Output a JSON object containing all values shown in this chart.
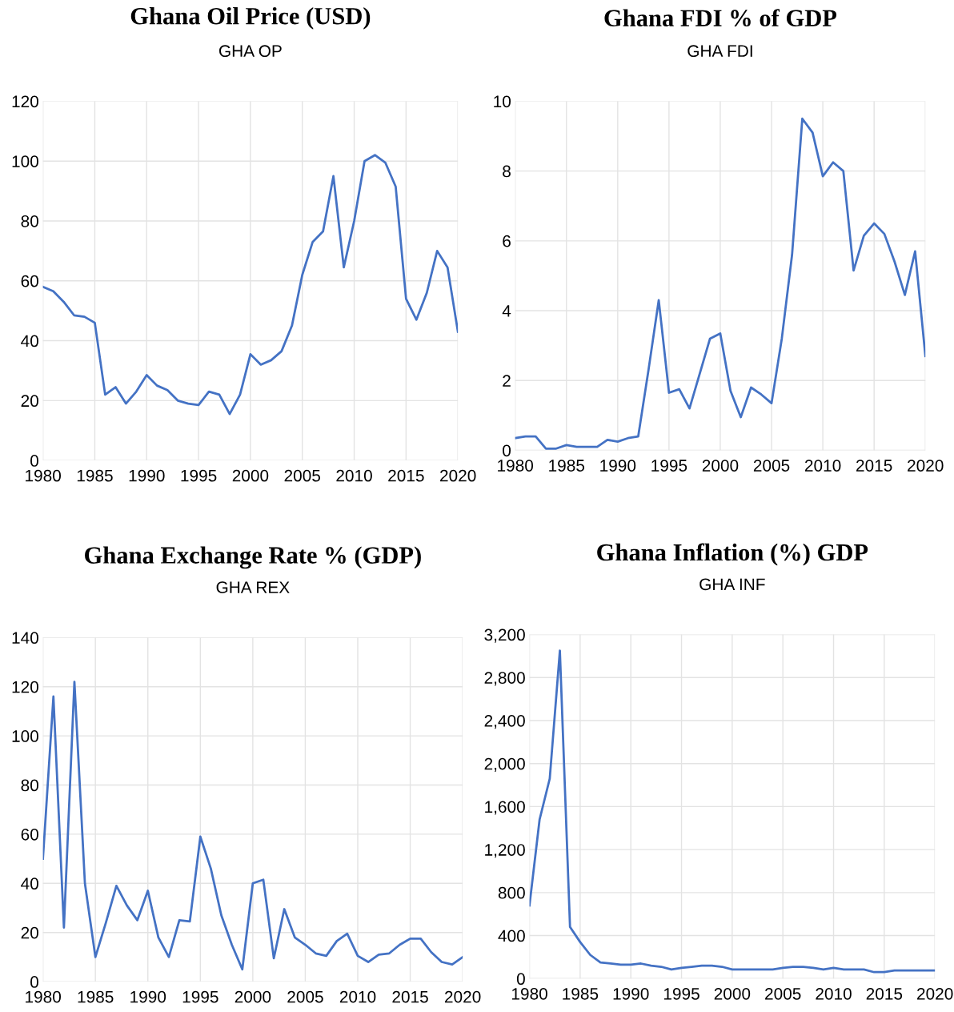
{
  "chart_data": [
    {
      "type": "line",
      "title": "Ghana Oil Price (USD)",
      "subtitle": "GHA OP",
      "x": [
        1980,
        1981,
        1982,
        1983,
        1984,
        1985,
        1986,
        1987,
        1988,
        1989,
        1990,
        1991,
        1992,
        1993,
        1994,
        1995,
        1996,
        1997,
        1998,
        1999,
        2000,
        2001,
        2002,
        2003,
        2004,
        2005,
        2006,
        2007,
        2008,
        2009,
        2010,
        2011,
        2012,
        2013,
        2014,
        2015,
        2016,
        2017,
        2018,
        2019,
        2020
      ],
      "series": [
        {
          "color": "#4472c4",
          "values": [
            58,
            56.5,
            53,
            48.5,
            48,
            46,
            22,
            24.5,
            19,
            23,
            28.5,
            25,
            23.5,
            20,
            19,
            18.5,
            23,
            22,
            15.5,
            22,
            35.5,
            32,
            33.5,
            36.5,
            45,
            62,
            73,
            76.5,
            95,
            64.5,
            80,
            100,
            102,
            99.5,
            91.5,
            54,
            47,
            56,
            70,
            64.5,
            43
          ]
        }
      ],
      "xlim": [
        1980,
        2020
      ],
      "xticks": [
        1980,
        1985,
        1990,
        1995,
        2000,
        2005,
        2010,
        2015,
        2020
      ],
      "ylim": [
        0,
        120
      ],
      "yticks": [
        0,
        20,
        40,
        60,
        80,
        100,
        120
      ],
      "grid": true,
      "marker": "none",
      "line_style": "solid"
    },
    {
      "type": "line",
      "title": "Ghana FDI % of GDP",
      "subtitle": "GHA FDI",
      "x": [
        1980,
        1981,
        1982,
        1983,
        1984,
        1985,
        1986,
        1987,
        1988,
        1989,
        1990,
        1991,
        1992,
        1993,
        1994,
        1995,
        1996,
        1997,
        1998,
        1999,
        2000,
        2001,
        2002,
        2003,
        2004,
        2005,
        2006,
        2007,
        2008,
        2009,
        2010,
        2011,
        2012,
        2013,
        2014,
        2015,
        2016,
        2017,
        2018,
        2019,
        2020
      ],
      "series": [
        {
          "color": "#4472c4",
          "values": [
            0.35,
            0.4,
            0.4,
            0.05,
            0.05,
            0.15,
            0.1,
            0.1,
            0.1,
            0.3,
            0.25,
            0.35,
            0.4,
            2.3,
            4.3,
            1.65,
            1.75,
            1.2,
            2.2,
            3.2,
            3.35,
            1.7,
            0.95,
            1.8,
            1.6,
            1.35,
            3.2,
            5.6,
            9.5,
            9.1,
            7.85,
            8.25,
            8.0,
            5.15,
            6.15,
            6.5,
            6.2,
            5.4,
            4.45,
            5.7,
            2.7
          ]
        }
      ],
      "xlim": [
        1980,
        2020
      ],
      "xticks": [
        1980,
        1985,
        1990,
        1995,
        2000,
        2005,
        2010,
        2015,
        2020
      ],
      "ylim": [
        0,
        10
      ],
      "yticks": [
        0,
        2,
        4,
        6,
        8,
        10
      ],
      "grid": true,
      "marker": "none",
      "line_style": "solid"
    },
    {
      "type": "line",
      "title": "Ghana Exchange Rate % (GDP)",
      "subtitle": "GHA REX",
      "x": [
        1980,
        1981,
        1982,
        1983,
        1984,
        1985,
        1986,
        1987,
        1988,
        1989,
        1990,
        1991,
        1992,
        1993,
        1994,
        1995,
        1996,
        1997,
        1998,
        1999,
        2000,
        2001,
        2002,
        2003,
        2004,
        2005,
        2006,
        2007,
        2008,
        2009,
        2010,
        2011,
        2012,
        2013,
        2014,
        2015,
        2016,
        2017,
        2018,
        2019,
        2020
      ],
      "series": [
        {
          "color": "#4472c4",
          "values": [
            50,
            116,
            22,
            122,
            40,
            10,
            24,
            39,
            31,
            25,
            37,
            18,
            10,
            25,
            24.5,
            59,
            46,
            27,
            15,
            5,
            40,
            41.5,
            9.5,
            29.5,
            18,
            15,
            11.5,
            10.5,
            16.5,
            19.5,
            10.5,
            8,
            11,
            11.5,
            15,
            17.5,
            17.5,
            12,
            8,
            7,
            10
          ]
        }
      ],
      "xlim": [
        1980,
        2020
      ],
      "xticks": [
        1980,
        1985,
        1990,
        1995,
        2000,
        2005,
        2010,
        2015,
        2020
      ],
      "ylim": [
        0,
        140
      ],
      "yticks": [
        0,
        20,
        40,
        60,
        80,
        100,
        120,
        140
      ],
      "grid": true,
      "marker": "none",
      "line_style": "solid"
    },
    {
      "type": "line",
      "title": "Ghana Inflation (%) GDP",
      "subtitle": "GHA INF",
      "x": [
        1980,
        1981,
        1982,
        1983,
        1984,
        1985,
        1986,
        1987,
        1988,
        1989,
        1990,
        1991,
        1992,
        1993,
        1994,
        1995,
        1996,
        1997,
        1998,
        1999,
        2000,
        2001,
        2002,
        2003,
        2004,
        2005,
        2006,
        2007,
        2008,
        2009,
        2010,
        2011,
        2012,
        2013,
        2014,
        2015,
        2016,
        2017,
        2018,
        2019,
        2020
      ],
      "series": [
        {
          "color": "#4472c4",
          "values": [
            680,
            1480,
            1860,
            3050,
            480,
            340,
            220,
            150,
            140,
            130,
            130,
            140,
            120,
            110,
            85,
            100,
            110,
            120,
            120,
            110,
            85,
            85,
            85,
            85,
            85,
            100,
            110,
            110,
            100,
            85,
            100,
            85,
            85,
            85,
            60,
            60,
            75,
            75,
            75,
            75,
            75
          ]
        }
      ],
      "xlim": [
        1980,
        2020
      ],
      "xticks": [
        1980,
        1985,
        1990,
        1995,
        2000,
        2005,
        2010,
        2015,
        2020
      ],
      "ylim": [
        0,
        3200
      ],
      "yticks": [
        0,
        400,
        800,
        {
          "value": 1200,
          "label": "1,200"
        },
        {
          "value": 1600,
          "label": "1,600"
        },
        {
          "value": 2000,
          "label": "2,000"
        },
        {
          "value": 2400,
          "label": "2,400"
        },
        {
          "value": 2800,
          "label": "2,800"
        },
        {
          "value": 3200,
          "label": "3,200"
        }
      ],
      "grid": true,
      "marker": "none",
      "line_style": "solid"
    }
  ]
}
